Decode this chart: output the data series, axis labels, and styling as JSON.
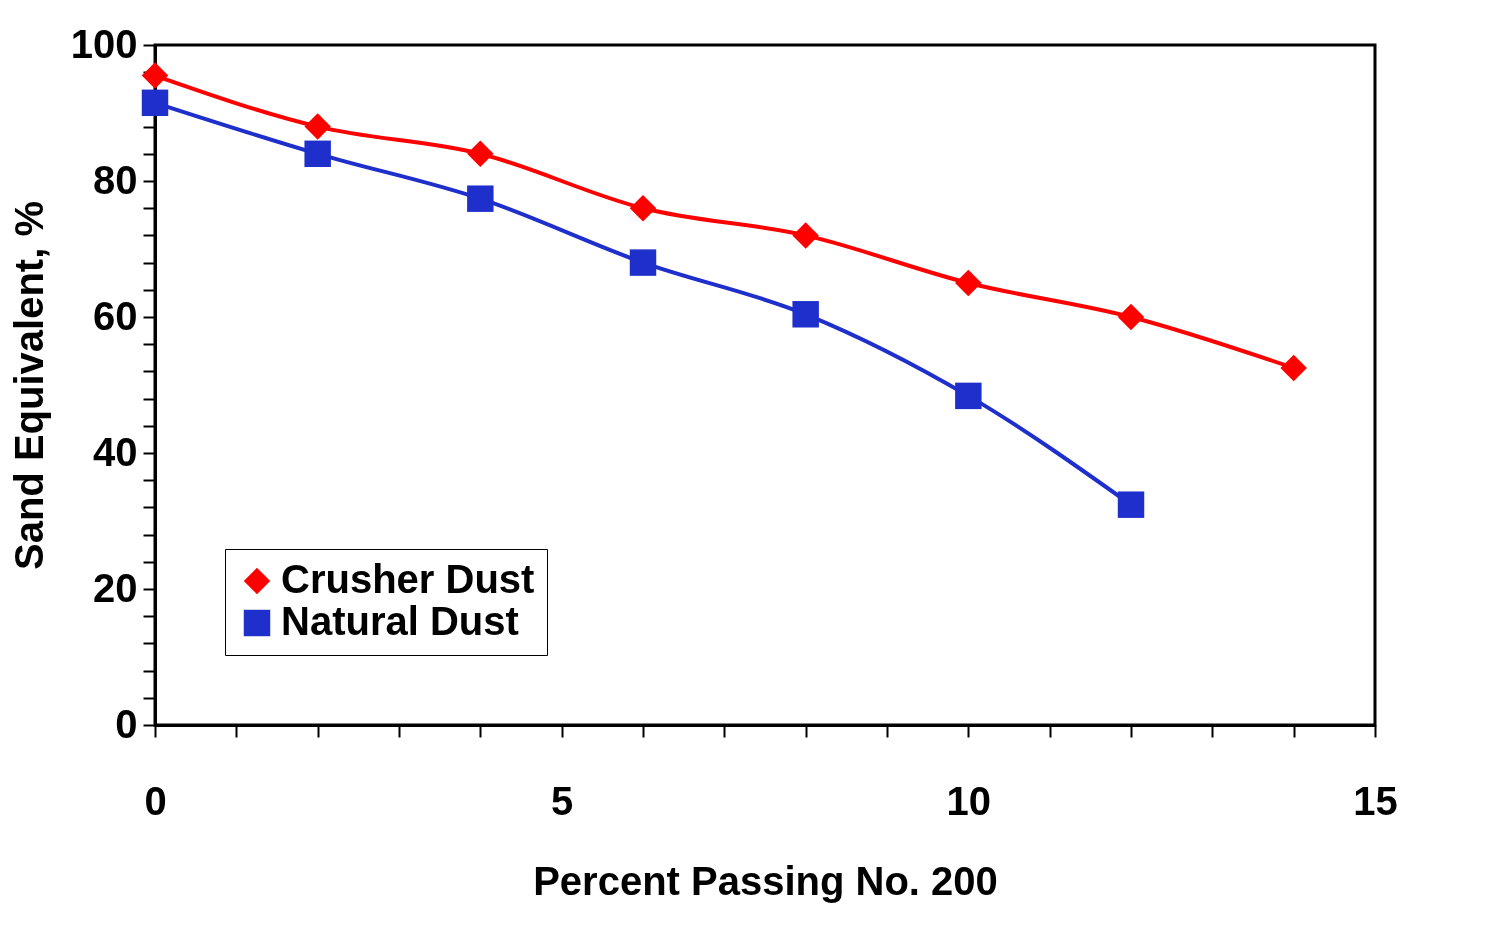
{
  "chart_data": {
    "type": "line",
    "xlabel": "Percent Passing No. 200",
    "ylabel": "Sand Equivalent, %",
    "xlim": [
      0,
      15
    ],
    "ylim": [
      0,
      100
    ],
    "xticks": [
      0,
      {
        "value": 1,
        "label": null
      },
      {
        "value": 2,
        "label": null
      },
      {
        "value": 3,
        "label": null
      },
      {
        "value": 4,
        "label": null
      },
      5,
      {
        "value": 6,
        "label": null
      },
      {
        "value": 7,
        "label": null
      },
      {
        "value": 8,
        "label": null
      },
      {
        "value": 9,
        "label": null
      },
      10,
      {
        "value": 11,
        "label": null
      },
      {
        "value": 12,
        "label": null
      },
      {
        "value": 13,
        "label": null
      },
      {
        "value": 14,
        "label": null
      },
      15
    ],
    "yticks": [
      0,
      {
        "value": 4,
        "label": null
      },
      {
        "value": 8,
        "label": null
      },
      {
        "value": 12,
        "label": null
      },
      {
        "value": 16,
        "label": null
      },
      20,
      {
        "value": 24,
        "label": null
      },
      {
        "value": 28,
        "label": null
      },
      {
        "value": 32,
        "label": null
      },
      {
        "value": 36,
        "label": null
      },
      40,
      {
        "value": 44,
        "label": null
      },
      {
        "value": 48,
        "label": null
      },
      {
        "value": 52,
        "label": null
      },
      {
        "value": 56,
        "label": null
      },
      60,
      {
        "value": 64,
        "label": null
      },
      {
        "value": 68,
        "label": null
      },
      {
        "value": 72,
        "label": null
      },
      {
        "value": 76,
        "label": null
      },
      80,
      {
        "value": 84,
        "label": null
      },
      {
        "value": 88,
        "label": null
      },
      {
        "value": 92,
        "label": null
      },
      {
        "value": 96,
        "label": null
      },
      100
    ],
    "grid": false,
    "legend": "bottom left",
    "line_style": "solid",
    "x": [
      0,
      2,
      4,
      6,
      8,
      10,
      12,
      14
    ],
    "series": [
      {
        "name": "Crusher Dust",
        "color": "#ff0000",
        "marker": "diamond",
        "values": [
          95.5,
          88,
          84,
          76,
          72,
          65,
          60,
          52.5
        ]
      },
      {
        "name": "Natural Dust",
        "color": "#1f2fcc",
        "marker": "square",
        "x": [
          0,
          2,
          4,
          6,
          8,
          10,
          12
        ],
        "values": [
          91.5,
          84,
          77.4,
          68,
          60.4,
          48.4,
          32.4
        ]
      }
    ]
  }
}
